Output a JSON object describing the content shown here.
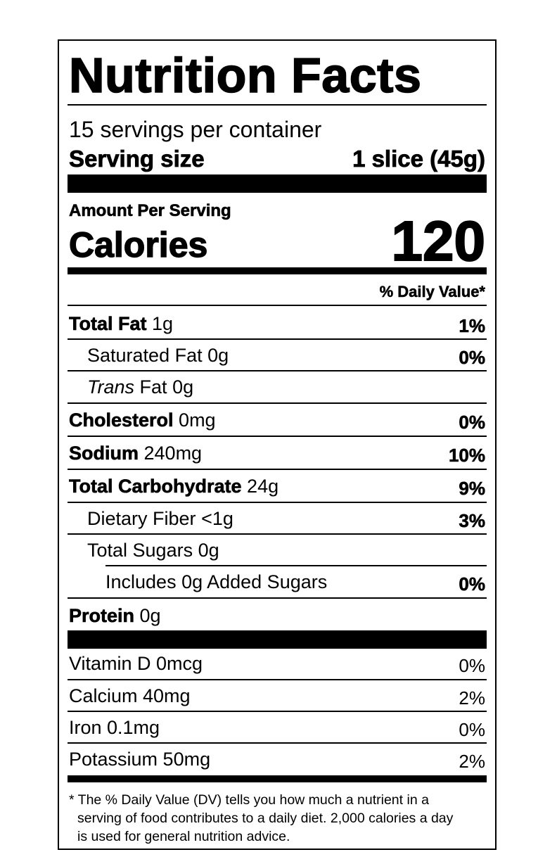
{
  "title": "Nutrition Facts",
  "servings_per_container": "15 servings per container",
  "serving_size": {
    "label": "Serving size",
    "value": "1 slice (45g)"
  },
  "amount_per_serving": "Amount Per Serving",
  "calories": {
    "label": "Calories",
    "value": "120"
  },
  "daily_value_header": "% Daily Value*",
  "nutrients": [
    {
      "name": "Total Fat",
      "amount": "1g",
      "dv": "1%"
    },
    {
      "name": "Saturated Fat",
      "amount": "0g",
      "dv": "0%"
    },
    {
      "name_italic": "Trans",
      "name": "Fat",
      "amount": "0g",
      "dv": ""
    },
    {
      "name": "Cholesterol",
      "amount": "0mg",
      "dv": "0%"
    },
    {
      "name": "Sodium",
      "amount": "240mg",
      "dv": "10%"
    },
    {
      "name": "Total Carbohydrate",
      "amount": "24g",
      "dv": "9%"
    },
    {
      "name": "Dietary Fiber",
      "amount": "<1g",
      "dv": "3%"
    },
    {
      "name": "Total Sugars",
      "amount": "0g",
      "dv": ""
    },
    {
      "name": "Includes 0g Added Sugars",
      "amount": "",
      "dv": "0%"
    },
    {
      "name": "Protein",
      "amount": "0g",
      "dv": ""
    }
  ],
  "vitamins": [
    {
      "name": "Vitamin D 0mcg",
      "dv": "0%"
    },
    {
      "name": "Calcium 40mg",
      "dv": "2%"
    },
    {
      "name": "Iron 0.1mg",
      "dv": "0%"
    },
    {
      "name": "Potassium 50mg",
      "dv": "2%"
    }
  ],
  "footnote": {
    "line1": "* The % Daily Value (DV) tells you how much a nutrient in a",
    "line2": "serving of food contributes to a daily diet. 2,000 calories a day",
    "line3": "is used for general nutrition advice."
  }
}
